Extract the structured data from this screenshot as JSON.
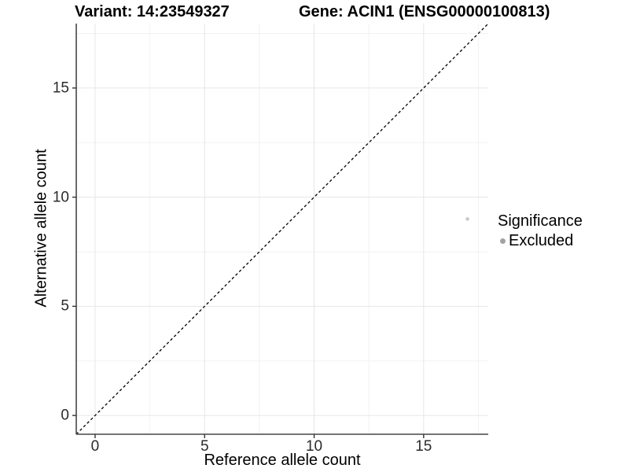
{
  "titles": {
    "variant": "Variant: 14:23549327",
    "gene": "Gene: ACIN1 (ENSG00000100813)"
  },
  "chart_data": {
    "type": "scatter",
    "title_left": "Variant: 14:23549327",
    "title_right": "Gene: ACIN1 (ENSG00000100813)",
    "xlabel": "Reference allele count",
    "ylabel": "Alternative allele count",
    "xlim": [
      -0.86,
      17.95
    ],
    "ylim": [
      -0.86,
      17.95
    ],
    "x_ticks": [
      0,
      5,
      10,
      15
    ],
    "y_ticks": [
      0,
      5,
      10,
      15
    ],
    "minor_ticks": [
      2.5,
      7.5,
      12.5,
      17.5
    ],
    "grid": true,
    "points": [
      {
        "x": 17,
        "y": 9,
        "significance": "Excluded",
        "color": "#c9c9c9",
        "radius": 2.3
      }
    ],
    "abline": {
      "slope": 1,
      "intercept": 0,
      "style": "dashed",
      "color": "#000000"
    },
    "legend": {
      "title": "Significance",
      "position": "right",
      "entries": [
        {
          "label": "Excluded",
          "color": "#a3a3a3"
        }
      ]
    }
  },
  "colors": {
    "background": "#ffffff",
    "axis_line": "#474747",
    "tick_mark": "#333333",
    "grid_major": "#e6e6e6",
    "grid_minor": "#f2f2f2",
    "tick_text": "#2b2b2b"
  }
}
